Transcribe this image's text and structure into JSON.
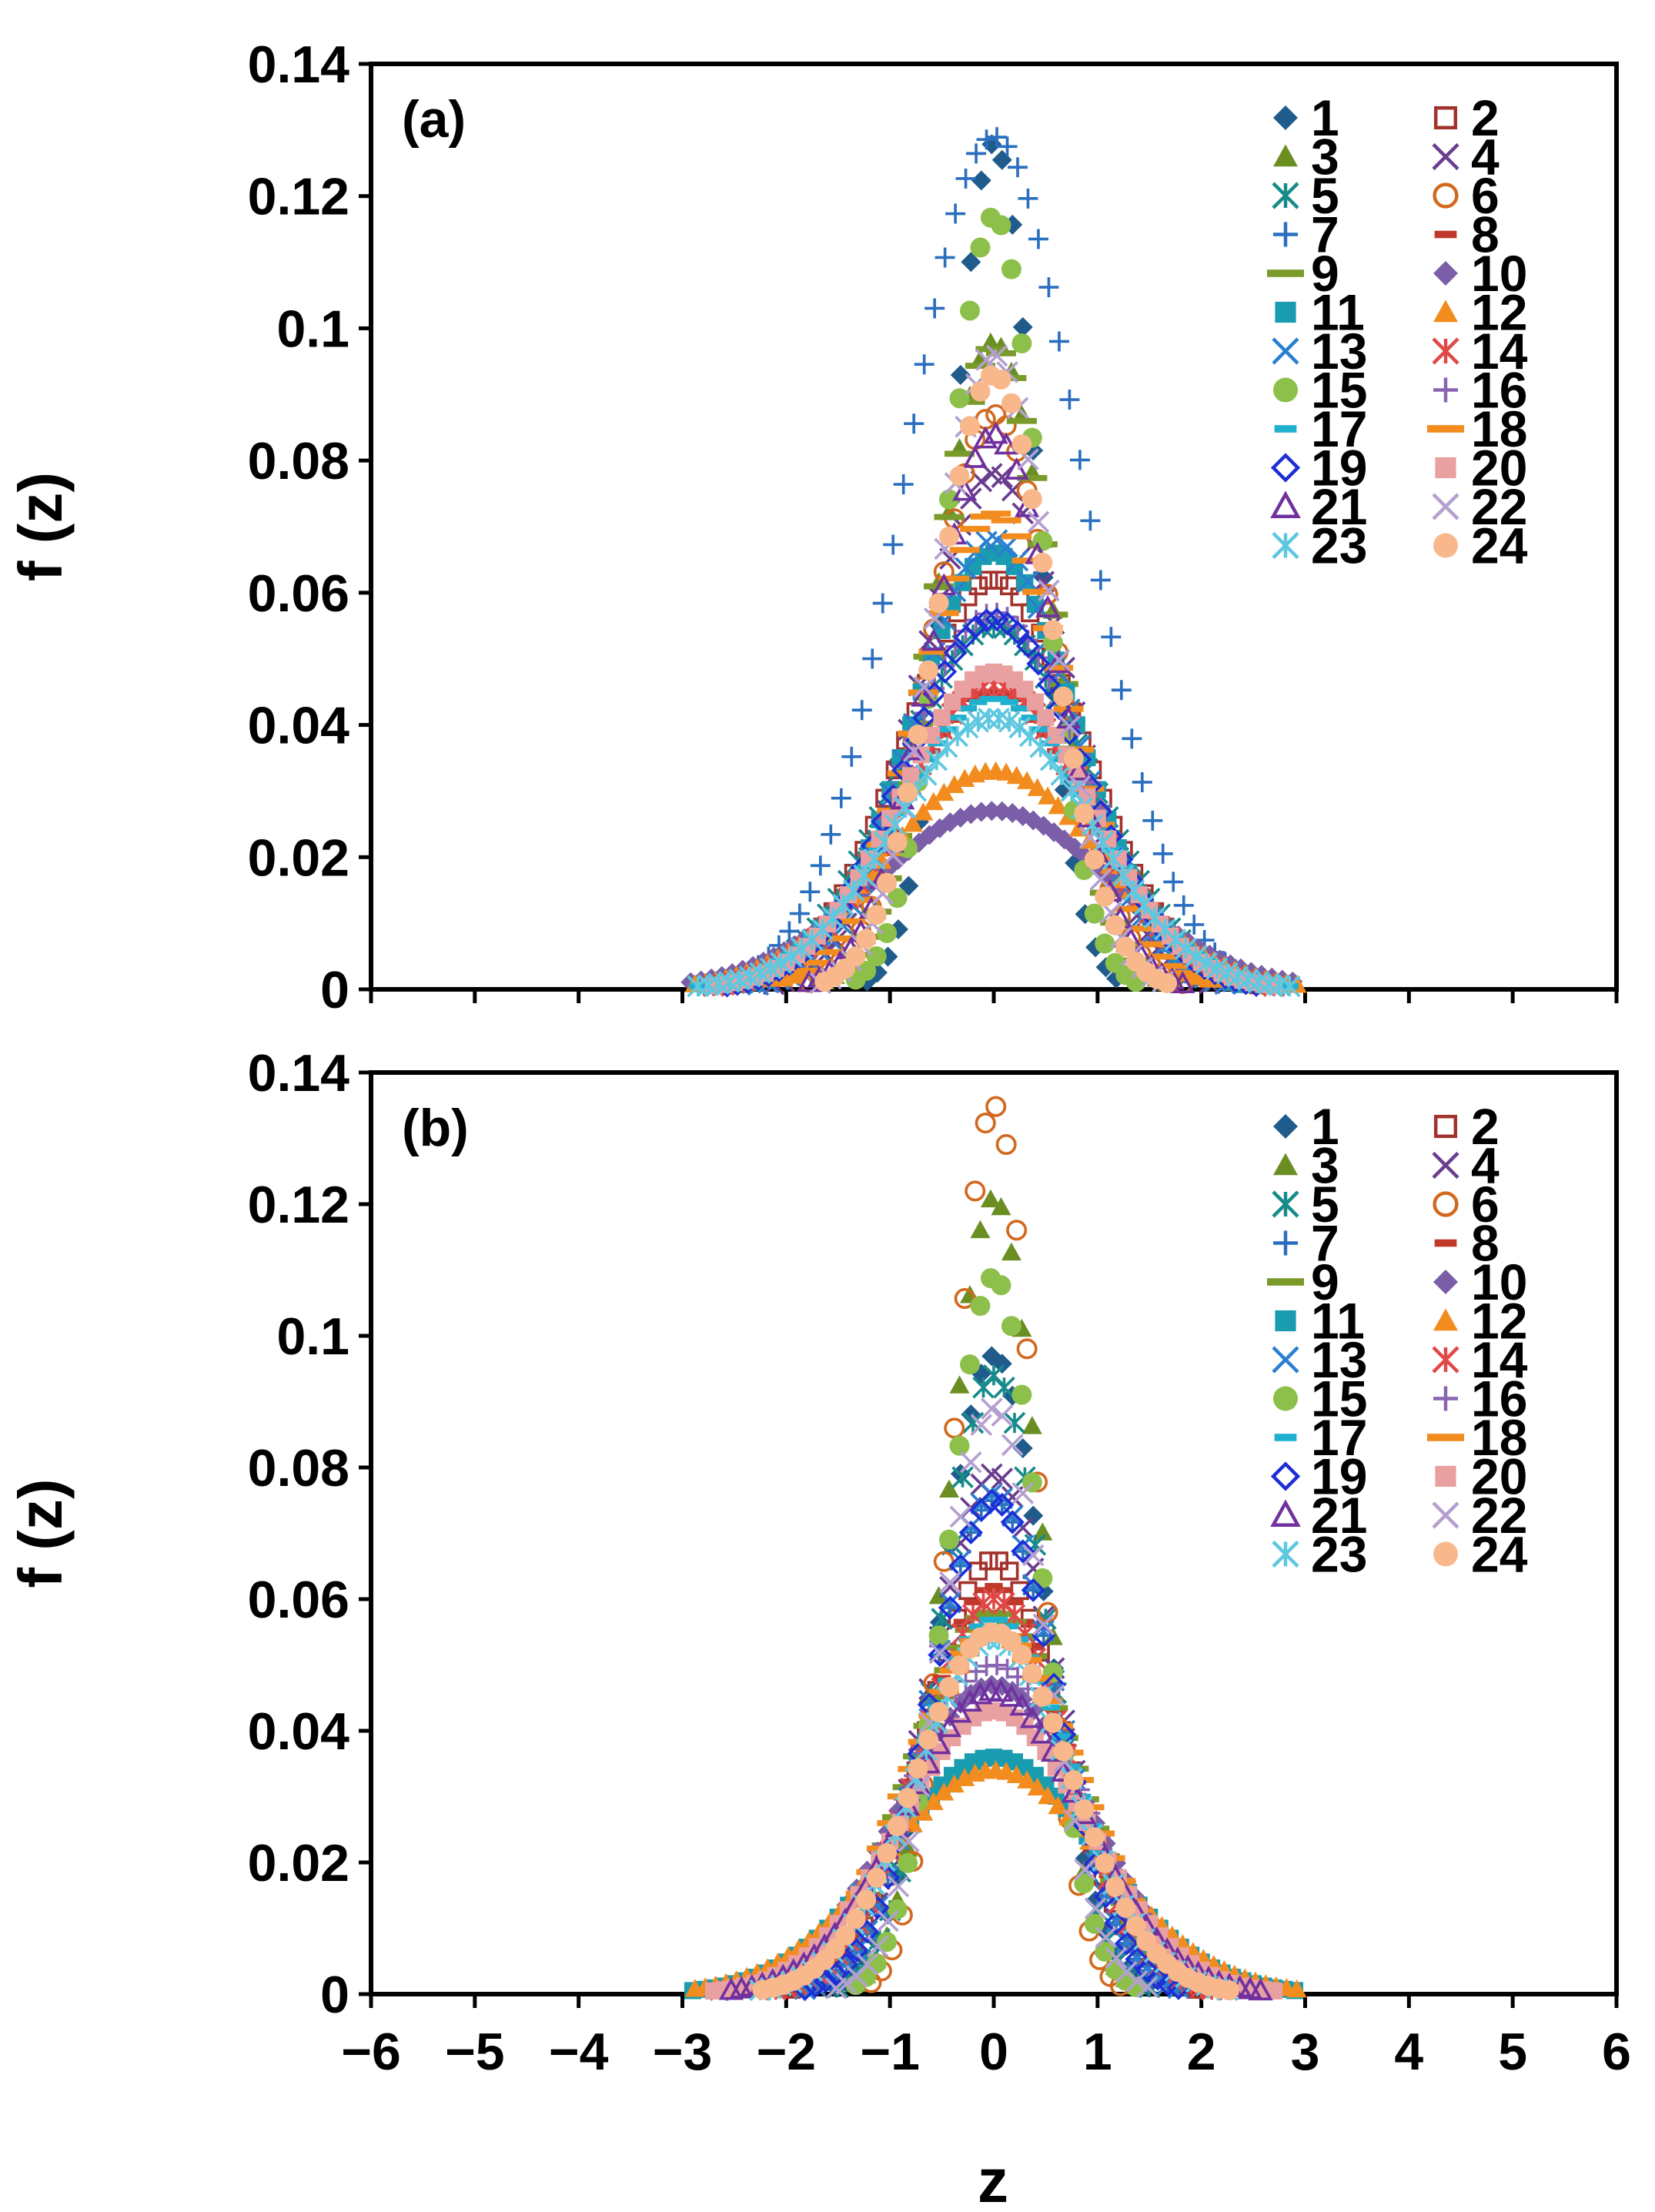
{
  "figure": {
    "xlabel": "z",
    "ylabel": "f (z)",
    "xticks": [
      -6,
      -5,
      -4,
      -3,
      -2,
      -1,
      0,
      1,
      2,
      3,
      4,
      5,
      6
    ],
    "xtick_labels": [
      "−6",
      "−5",
      "−4",
      "−3",
      "−2",
      "−1",
      "0",
      "1",
      "2",
      "3",
      "4",
      "5",
      "6"
    ],
    "yticks": [
      0,
      0.02,
      0.04,
      0.06,
      0.08,
      0.1,
      0.12,
      0.14
    ],
    "ytick_labels": [
      "0",
      "0.02",
      "0.04",
      "0.06",
      "0.08",
      "0.1",
      "0.12",
      "0.14"
    ]
  },
  "series_styles": [
    {
      "name": "1",
      "marker": "diamond-filled",
      "color": "#1f5c8c"
    },
    {
      "name": "2",
      "marker": "square-open",
      "color": "#a3322c"
    },
    {
      "name": "3",
      "marker": "triangle-filled",
      "color": "#6b8e23"
    },
    {
      "name": "4",
      "marker": "x",
      "color": "#6a3d8f"
    },
    {
      "name": "5",
      "marker": "asterisk",
      "color": "#178a8a"
    },
    {
      "name": "6",
      "marker": "circle-open",
      "color": "#d2691e"
    },
    {
      "name": "7",
      "marker": "plus",
      "color": "#2a6fbf"
    },
    {
      "name": "8",
      "marker": "dash",
      "color": "#c0392b"
    },
    {
      "name": "9",
      "marker": "long-dash",
      "color": "#7a9a2a"
    },
    {
      "name": "10",
      "marker": "diamond-filled",
      "color": "#7b5ea7"
    },
    {
      "name": "11",
      "marker": "square-filled",
      "color": "#1a9cb0"
    },
    {
      "name": "12",
      "marker": "triangle-filled",
      "color": "#f28c1e"
    },
    {
      "name": "13",
      "marker": "x",
      "color": "#2b7fcf"
    },
    {
      "name": "14",
      "marker": "asterisk",
      "color": "#e04848"
    },
    {
      "name": "15",
      "marker": "circle-filled",
      "color": "#8dc04a"
    },
    {
      "name": "16",
      "marker": "plus",
      "color": "#8a64b0"
    },
    {
      "name": "17",
      "marker": "dash",
      "color": "#1fb0d0"
    },
    {
      "name": "18",
      "marker": "long-dash",
      "color": "#f28c1e"
    },
    {
      "name": "19",
      "marker": "diamond-open",
      "color": "#1e2ed6"
    },
    {
      "name": "20",
      "marker": "square-filled",
      "color": "#e8a0a0"
    },
    {
      "name": "21",
      "marker": "triangle-open",
      "color": "#7030a0"
    },
    {
      "name": "22",
      "marker": "x",
      "color": "#b4a0d0"
    },
    {
      "name": "23",
      "marker": "asterisk",
      "color": "#5ec8e0"
    },
    {
      "name": "24",
      "marker": "circle-filled",
      "color": "#f8b88c"
    }
  ],
  "chart_data": [
    {
      "type": "scatter",
      "panel_label": "(a)",
      "xlabel": "",
      "ylabel": "f (z)",
      "xlim": [
        -6,
        6
      ],
      "ylim": [
        0,
        0.14
      ],
      "series_peaks": {
        "1": 0.128,
        "2": 0.062,
        "3": 0.098,
        "4": 0.078,
        "5": 0.055,
        "6": 0.087,
        "7": 0.129,
        "8": 0.045,
        "9": 0.097,
        "10": 0.027,
        "11": 0.066,
        "12": 0.033,
        "13": 0.068,
        "14": 0.046,
        "15": 0.117,
        "16": 0.057,
        "17": 0.044,
        "18": 0.072,
        "19": 0.056,
        "20": 0.048,
        "21": 0.084,
        "22": 0.096,
        "23": 0.041,
        "24": 0.093
      },
      "series_widths": {
        "1": 0.4,
        "2": 0.85,
        "3": 0.55,
        "4": 0.7,
        "5": 0.9,
        "6": 0.6,
        "7": 0.85,
        "8": 0.9,
        "9": 0.55,
        "10": 1.15,
        "11": 0.8,
        "12": 1.05,
        "13": 0.75,
        "14": 0.9,
        "15": 0.45,
        "16": 0.85,
        "17": 0.95,
        "18": 0.7,
        "19": 0.85,
        "20": 0.9,
        "21": 0.6,
        "22": 0.55,
        "23": 0.95,
        "24": 0.55
      }
    },
    {
      "type": "scatter",
      "panel_label": "(b)",
      "xlabel": "z",
      "ylabel": "f (z)",
      "xlim": [
        -6,
        6
      ],
      "ylim": [
        0,
        0.14
      ],
      "series_peaks": {
        "1": 0.097,
        "2": 0.066,
        "3": 0.121,
        "4": 0.079,
        "5": 0.094,
        "6": 0.135,
        "7": 0.075,
        "8": 0.062,
        "9": 0.058,
        "10": 0.047,
        "11": 0.036,
        "12": 0.034,
        "13": 0.076,
        "14": 0.06,
        "15": 0.109,
        "16": 0.05,
        "17": 0.057,
        "18": 0.055,
        "19": 0.075,
        "20": 0.043,
        "21": 0.046,
        "22": 0.089,
        "23": 0.054,
        "24": 0.055
      },
      "series_widths": {
        "1": 0.5,
        "2": 0.65,
        "3": 0.45,
        "4": 0.6,
        "5": 0.5,
        "6": 0.4,
        "7": 0.6,
        "8": 0.7,
        "9": 0.75,
        "10": 0.9,
        "11": 1.0,
        "12": 1.05,
        "13": 0.6,
        "14": 0.7,
        "15": 0.45,
        "16": 0.85,
        "17": 0.75,
        "18": 0.8,
        "19": 0.6,
        "20": 0.9,
        "21": 0.85,
        "22": 0.5,
        "23": 0.75,
        "24": 0.75
      }
    }
  ]
}
